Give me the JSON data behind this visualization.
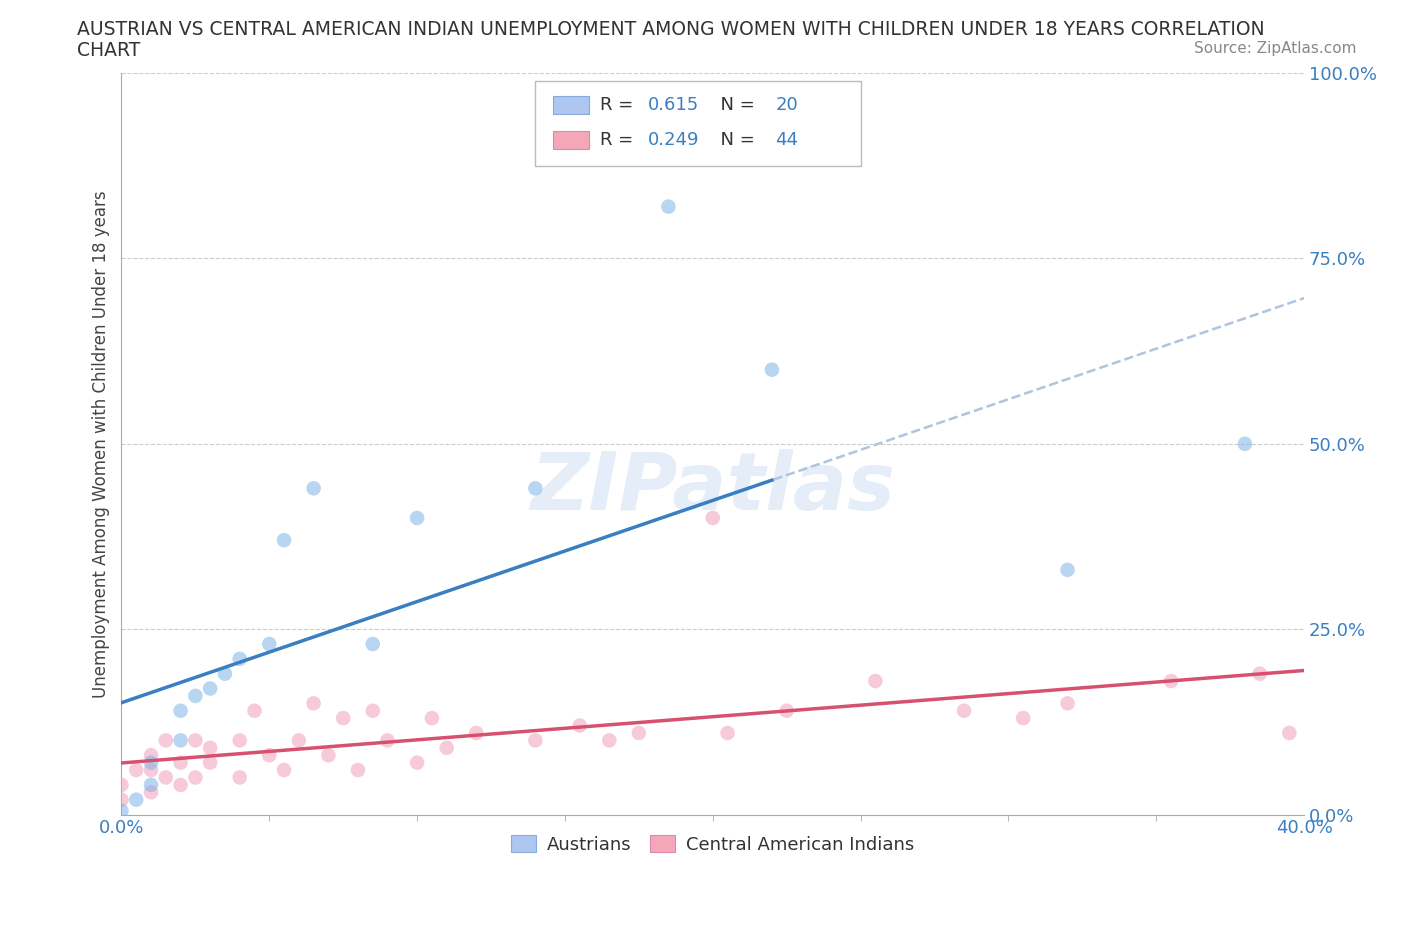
{
  "title_line1": "AUSTRIAN VS CENTRAL AMERICAN INDIAN UNEMPLOYMENT AMONG WOMEN WITH CHILDREN UNDER 18 YEARS CORRELATION",
  "title_line2": "CHART",
  "source_text": "Source: ZipAtlas.com",
  "ylabel": "Unemployment Among Women with Children Under 18 years",
  "xmin": 0.0,
  "xmax": 0.4,
  "ymin": 0.0,
  "ymax": 1.0,
  "xtick_labels": [
    "0.0%",
    "40.0%"
  ],
  "xtick_values": [
    0.0,
    0.4
  ],
  "ytick_labels": [
    "0.0%",
    "25.0%",
    "50.0%",
    "75.0%",
    "100.0%"
  ],
  "ytick_values": [
    0.0,
    0.25,
    0.5,
    0.75,
    1.0
  ],
  "bottom_legend_entries": [
    {
      "color": "#aec6f0",
      "label": "Austrians"
    },
    {
      "color": "#f4a7b9",
      "label": "Central American Indians"
    }
  ],
  "watermark_text": "ZIPatlas",
  "background_color": "#ffffff",
  "grid_color": "#cccccc",
  "austrians_x": [
    0.0,
    0.005,
    0.01,
    0.01,
    0.02,
    0.02,
    0.025,
    0.03,
    0.035,
    0.04,
    0.05,
    0.055,
    0.065,
    0.085,
    0.1,
    0.14,
    0.185,
    0.22,
    0.32,
    0.38
  ],
  "austrians_y": [
    0.005,
    0.02,
    0.04,
    0.07,
    0.1,
    0.14,
    0.16,
    0.17,
    0.19,
    0.21,
    0.23,
    0.37,
    0.44,
    0.23,
    0.4,
    0.44,
    0.82,
    0.6,
    0.33,
    0.5
  ],
  "central_american_x": [
    0.0,
    0.0,
    0.005,
    0.01,
    0.01,
    0.01,
    0.015,
    0.015,
    0.02,
    0.02,
    0.025,
    0.025,
    0.03,
    0.03,
    0.04,
    0.04,
    0.045,
    0.05,
    0.055,
    0.06,
    0.065,
    0.07,
    0.075,
    0.08,
    0.085,
    0.09,
    0.1,
    0.105,
    0.11,
    0.12,
    0.14,
    0.155,
    0.165,
    0.175,
    0.2,
    0.205,
    0.225,
    0.255,
    0.285,
    0.305,
    0.32,
    0.355,
    0.385,
    0.395
  ],
  "central_american_y": [
    0.02,
    0.04,
    0.06,
    0.03,
    0.06,
    0.08,
    0.05,
    0.1,
    0.04,
    0.07,
    0.05,
    0.1,
    0.07,
    0.09,
    0.05,
    0.1,
    0.14,
    0.08,
    0.06,
    0.1,
    0.15,
    0.08,
    0.13,
    0.06,
    0.14,
    0.1,
    0.07,
    0.13,
    0.09,
    0.11,
    0.1,
    0.12,
    0.1,
    0.11,
    0.4,
    0.11,
    0.14,
    0.18,
    0.14,
    0.13,
    0.15,
    0.18,
    0.19,
    0.11
  ],
  "point_size": 110,
  "point_alpha": 0.55,
  "austrians_color": "#7eb3e8",
  "central_american_color": "#f0a0b8",
  "regression_line_austrians_color": "#3a7fc1",
  "regression_line_central_color": "#d85070",
  "regression_dashed_color": "#b0c4de",
  "austrians_R": 0.615,
  "austrians_N": 20,
  "central_R": 0.249,
  "central_N": 44,
  "legend_box_color": "#aec6f0",
  "legend_box_color2": "#f4a7b9",
  "legend_text_color": "#333333",
  "legend_value_color": "#3a7fc1"
}
